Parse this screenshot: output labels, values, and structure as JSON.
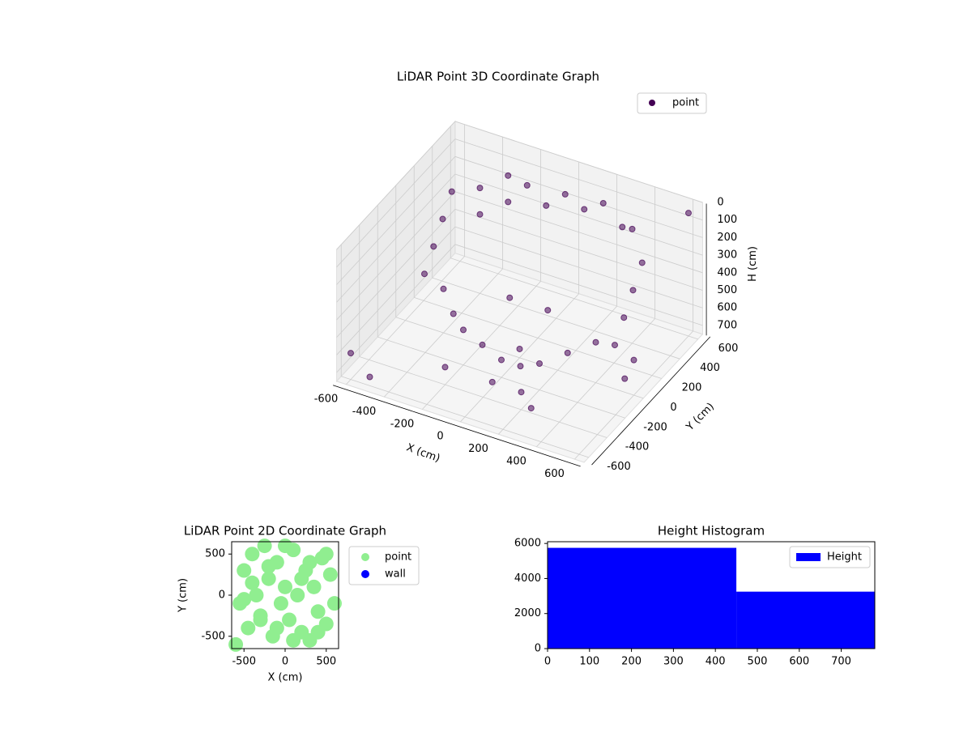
{
  "chart_data": [
    {
      "type": "scatter3d",
      "title": "LiDAR Point 3D Coordinate Graph",
      "xlabel": "X (cm)",
      "ylabel": "Y (cm)",
      "zlabel": "H (cm)",
      "xlim": [
        -650,
        650
      ],
      "ylim": [
        -650,
        650
      ],
      "zlim": [
        0,
        750
      ],
      "xticks": [
        -600,
        -400,
        -200,
        0,
        200,
        400,
        600
      ],
      "yticks": [
        -600,
        -400,
        -200,
        0,
        200,
        400,
        600
      ],
      "zticks": [
        0,
        100,
        200,
        300,
        400,
        500,
        600,
        700
      ],
      "legend": "upper right",
      "grid": true,
      "series": [
        {
          "name": "point",
          "color": "#440154",
          "x": [
            -500,
            -500,
            -500,
            -500,
            -400,
            -400,
            -300,
            -300,
            -200,
            -100,
            0,
            100,
            200,
            300,
            400,
            500,
            500,
            500,
            500,
            600,
            600,
            -200,
            -100,
            0,
            100,
            200,
            -300,
            300,
            -400,
            400,
            0,
            0,
            -600,
            600,
            -100,
            100,
            200,
            -200,
            300,
            -500
          ],
          "y": [
            300,
            200,
            100,
            0,
            400,
            400,
            500,
            500,
            500,
            500,
            500,
            500,
            500,
            500,
            400,
            300,
            200,
            100,
            0,
            0,
            -100,
            -200,
            -200,
            -200,
            -200,
            -200,
            -100,
            -100,
            0,
            0,
            0,
            -300,
            -600,
            600,
            100,
            100,
            -400,
            -400,
            -500,
            -600
          ],
          "z": [
            150,
            250,
            350,
            450,
            150,
            300,
            100,
            250,
            120,
            200,
            100,
            150,
            80,
            180,
            100,
            200,
            300,
            400,
            500,
            550,
            600,
            550,
            600,
            650,
            650,
            600,
            550,
            560,
            500,
            520,
            700,
            720,
            600,
            50,
            500,
            500,
            650,
            650,
            650,
            700
          ]
        }
      ]
    },
    {
      "type": "scatter",
      "title": "LiDAR Point 2D Coordinate Graph",
      "xlabel": "X (cm)",
      "ylabel": "Y (cm)",
      "xlim": [
        -650,
        650
      ],
      "ylim": [
        -650,
        650
      ],
      "xticks": [
        -500,
        0,
        500
      ],
      "yticks": [
        -500,
        0,
        500
      ],
      "legend": "outside right",
      "series": [
        {
          "name": "point",
          "color": "#90ee90",
          "x": [
            -600,
            -550,
            -500,
            -450,
            -400,
            -350,
            -300,
            -250,
            -200,
            -150,
            -100,
            -50,
            0,
            50,
            100,
            150,
            200,
            250,
            300,
            350,
            400,
            450,
            500,
            550,
            600,
            -300,
            -100,
            100,
            300,
            -500,
            0,
            200,
            -200,
            400,
            -400,
            500
          ],
          "y": [
            -600,
            -100,
            300,
            -400,
            500,
            0,
            -300,
            600,
            200,
            -500,
            400,
            -100,
            100,
            -300,
            550,
            0,
            -450,
            300,
            -550,
            100,
            -200,
            450,
            -350,
            250,
            -100,
            -250,
            -400,
            -550,
            400,
            -50,
            600,
            200,
            350,
            -450,
            150,
            500
          ]
        },
        {
          "name": "wall",
          "color": "#0000ff",
          "x": [],
          "y": []
        }
      ]
    },
    {
      "type": "histogram",
      "title": "Height Histogram",
      "bins": [
        0,
        450,
        780
      ],
      "values": [
        5750,
        3250
      ],
      "xlim": [
        0,
        780
      ],
      "ylim": [
        0,
        6100
      ],
      "xticks": [
        0,
        100,
        200,
        300,
        400,
        500,
        600,
        700
      ],
      "yticks": [
        0,
        2000,
        4000,
        6000
      ],
      "legend": "upper right",
      "series_name": "Height",
      "color": "#0000ff"
    }
  ]
}
